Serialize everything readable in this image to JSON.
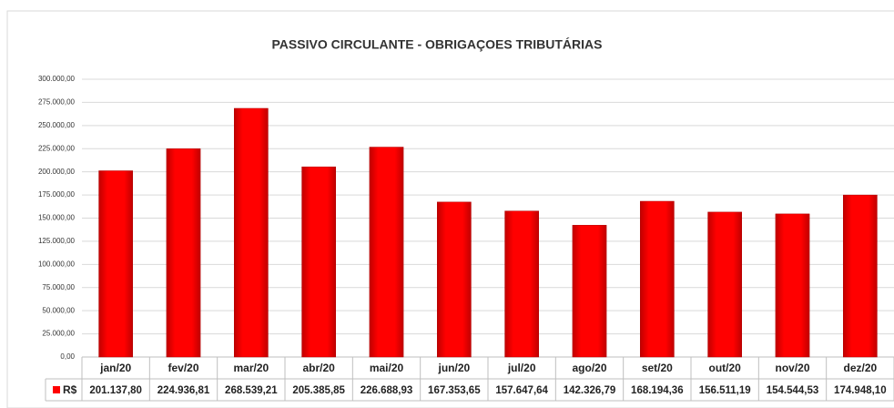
{
  "chart_data": {
    "type": "bar",
    "title": "PASSIVO CIRCULANTE - OBRIGAÇOES TRIBUTÁRIAS",
    "categories": [
      "jan/20",
      "fev/20",
      "mar/20",
      "abr/20",
      "mai/20",
      "jun/20",
      "jul/20",
      "ago/20",
      "set/20",
      "out/20",
      "nov/20",
      "dez/20"
    ],
    "series": [
      {
        "name": "R$",
        "color": "#ff0000",
        "values": [
          201137.8,
          224936.81,
          268539.21,
          205385.85,
          226688.93,
          167353.65,
          157647.64,
          142326.79,
          168194.36,
          156511.19,
          154544.53,
          174948.1
        ],
        "value_labels": [
          "201.137,80",
          "224.936,81",
          "268.539,21",
          "205.385,85",
          "226.688,93",
          "167.353,65",
          "157.647,64",
          "142.326,79",
          "168.194,36",
          "156.511,19",
          "154.544,53",
          "174.948,10"
        ]
      }
    ],
    "ylim": [
      0,
      300000
    ],
    "yticks": [
      {
        "value": 0,
        "label": "0,00"
      },
      {
        "value": 25000,
        "label": "25.000,00"
      },
      {
        "value": 50000,
        "label": "50.000,00"
      },
      {
        "value": 75000,
        "label": "75.000,00"
      },
      {
        "value": 100000,
        "label": "100.000,00"
      },
      {
        "value": 125000,
        "label": "125.000,00"
      },
      {
        "value": 150000,
        "label": "150.000,00"
      },
      {
        "value": 175000,
        "label": "175.000,00"
      },
      {
        "value": 200000,
        "label": "200.000,00"
      },
      {
        "value": 225000,
        "label": "225.000,00"
      },
      {
        "value": 250000,
        "label": "250.000,00"
      },
      {
        "value": 275000,
        "label": "275.000,00"
      },
      {
        "value": 300000,
        "label": "300.000,00"
      }
    ],
    "grid": true
  }
}
